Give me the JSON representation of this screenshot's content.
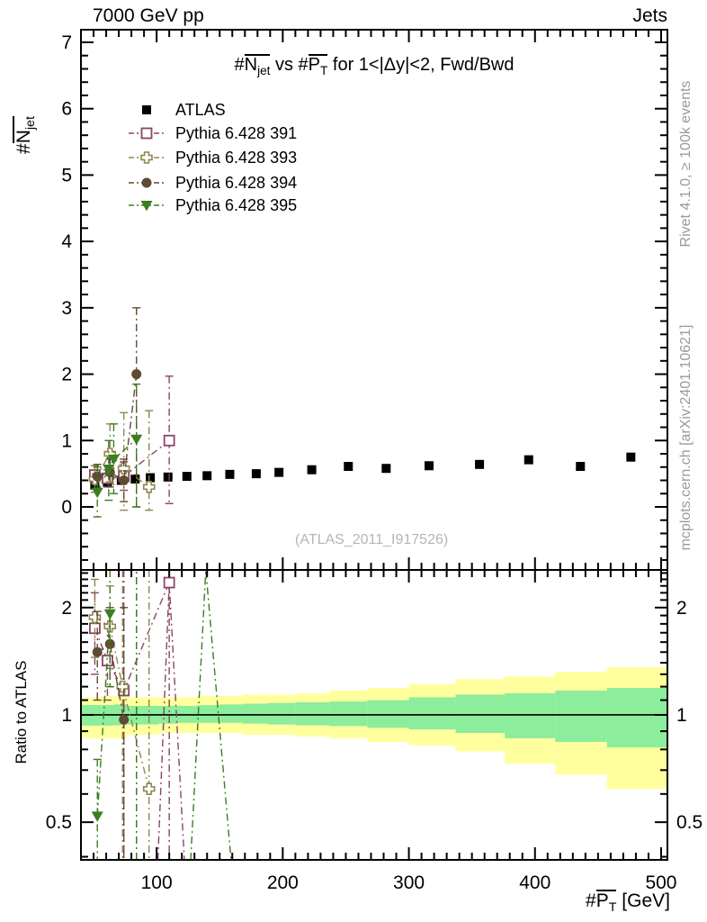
{
  "header": {
    "left_label": "7000 GeV pp",
    "right_label": "Jets"
  },
  "plot": {
    "title": {
      "hash1": "#",
      "sym1": "N",
      "sub1": "jet",
      "mid": " vs ",
      "hash2": "#",
      "sym2": "P",
      "sub2": "T",
      "tail": " for 1<|Δy|<2, Fwd/Bwd"
    },
    "y_axis_label": {
      "hash": "#",
      "sym": "N",
      "sub": "jet"
    },
    "x_axis_label": {
      "hash": "#",
      "sym": "P",
      "sub": "T",
      "units": " [GeV]"
    },
    "ratio_axis_label": "Ratio to ATLAS",
    "side_text_top": "Rivet 4.1.0, ≥ 100k events",
    "side_text_bottom": "mcplots.cern.ch [arXiv:2401.10621]",
    "watermark": "(ATLAS_2011_I917526)"
  },
  "legend": {
    "items": [
      {
        "label": "ATLAS",
        "series": "atlas"
      },
      {
        "label": "Pythia 6.428 391",
        "series": "p391"
      },
      {
        "label": "Pythia 6.428 393",
        "series": "p393"
      },
      {
        "label": "Pythia 6.428 394",
        "series": "p394"
      },
      {
        "label": "Pythia 6.428 395",
        "series": "p395"
      }
    ]
  },
  "colors": {
    "atlas": "#000000",
    "p391": "#8a4566",
    "p393": "#8f874f",
    "p394": "#5f4a33",
    "p395": "#3c7d20",
    "band_yellow": "#ffff9e",
    "band_green": "#8ced9c",
    "frame": "#000000",
    "gray_text": "#9a9a9a",
    "watermark": "#b5b5b5"
  },
  "chart_data": [
    {
      "id": "main",
      "type": "scatter",
      "title": "#Njet vs #PT for 1<|Δy|<2, Fwd/Bwd",
      "xlabel": "#PT [GeV]",
      "ylabel": "#Njet",
      "xlim": [
        40,
        505
      ],
      "ylim": [
        -0.95,
        7.19
      ],
      "xticks": [
        100,
        200,
        300,
        400,
        500
      ],
      "yticks": [
        0,
        1,
        2,
        3,
        4,
        5,
        6,
        7
      ],
      "x_minor_step": 10,
      "y_minor_step": 0.2,
      "grid": false,
      "legend_position": "top-left",
      "series": [
        {
          "key": "atlas",
          "name": "ATLAS",
          "marker": "square-filled",
          "color_key": "atlas",
          "connect": false,
          "points": [
            [
              51,
              0.33
            ],
            [
              61,
              0.37
            ],
            [
              72,
              0.4
            ],
            [
              83,
              0.42
            ],
            [
              95,
              0.44
            ],
            [
              109,
              0.45
            ],
            [
              124,
              0.46
            ],
            [
              140,
              0.47
            ],
            [
              158,
              0.49
            ],
            [
              179,
              0.5
            ],
            [
              197,
              0.52
            ],
            [
              223,
              0.56
            ],
            [
              252,
              0.61
            ],
            [
              282,
              0.58
            ],
            [
              316,
              0.62
            ],
            [
              356,
              0.64
            ],
            [
              395,
              0.71
            ],
            [
              436,
              0.61
            ],
            [
              476,
              0.75
            ]
          ]
        },
        {
          "key": "p391",
          "name": "Pythia 6.428 391",
          "marker": "square-open",
          "color_key": "p391",
          "connect": true,
          "points": [
            [
              51,
              0.48,
              0.36,
              0.62
            ],
            [
              61,
              0.43,
              0.3,
              0.56
            ],
            [
              74,
              0.46,
              0.25,
              0.68
            ],
            [
              110,
              1.0,
              0.05,
              1.97
            ]
          ]
        },
        {
          "key": "p393",
          "name": "Pythia 6.428 393",
          "marker": "cross-open",
          "color_key": "p393",
          "connect": true,
          "points": [
            [
              51,
              0.42,
              0.22,
              0.62
            ],
            [
              63,
              0.8,
              0.38,
              1.25
            ],
            [
              74,
              0.58,
              -0.05,
              1.42
            ],
            [
              94,
              0.3,
              -0.05,
              1.45
            ]
          ]
        },
        {
          "key": "p394",
          "name": "Pythia 6.428 394",
          "marker": "circle-filled",
          "color_key": "p394",
          "connect": true,
          "points": [
            [
              53,
              0.46,
              0.28,
              0.64
            ],
            [
              63,
              0.52,
              0.3,
              0.73
            ],
            [
              74,
              0.4,
              0.08,
              0.72
            ],
            [
              84,
              2.0,
              0.0,
              3.0
            ]
          ]
        },
        {
          "key": "p395",
          "name": "Pythia 6.428 395",
          "marker": "triangle-down-filled",
          "color_key": "p395",
          "connect": true,
          "points": [
            [
              53,
              0.22,
              -0.15,
              0.6
            ],
            [
              62,
              0.57,
              0.1,
              1.0
            ],
            [
              66,
              0.72,
              0.2,
              1.25
            ],
            [
              84,
              1.02,
              0.0,
              1.85
            ]
          ]
        }
      ]
    },
    {
      "id": "ratio",
      "type": "ratio-bands-scatter",
      "ylabel": "Ratio to ATLAS",
      "ylog": true,
      "xlim": [
        40,
        505
      ],
      "ylim": [
        0.392,
        2.55
      ],
      "yticks": [
        0.5,
        1,
        2
      ],
      "ytick_labels": [
        "0.5",
        "1",
        "2"
      ],
      "y_minor": {
        "from": 0.4,
        "to": 2.5,
        "step": 0.1
      },
      "xticks": [
        100,
        200,
        300,
        400,
        500
      ],
      "x_minor_step": 10,
      "reference_line": 1,
      "bands": {
        "edges": [
          40,
          56,
          66,
          76,
          88,
          102,
          117,
          132,
          150,
          168,
          188,
          210,
          237,
          267,
          300,
          337,
          376,
          416,
          457,
          505
        ],
        "yellow": [
          [
            0.86,
            1.12
          ],
          [
            0.86,
            1.13
          ],
          [
            0.86,
            1.13
          ],
          [
            0.88,
            1.12
          ],
          [
            0.88,
            1.12
          ],
          [
            0.89,
            1.12
          ],
          [
            0.89,
            1.12
          ],
          [
            0.89,
            1.13
          ],
          [
            0.89,
            1.13
          ],
          [
            0.88,
            1.14
          ],
          [
            0.88,
            1.14
          ],
          [
            0.87,
            1.15
          ],
          [
            0.86,
            1.17
          ],
          [
            0.84,
            1.19
          ],
          [
            0.82,
            1.22
          ],
          [
            0.79,
            1.26
          ],
          [
            0.73,
            1.28
          ],
          [
            0.68,
            1.32
          ],
          [
            0.62,
            1.36
          ]
        ],
        "green": [
          [
            0.933,
            1.066
          ],
          [
            0.933,
            1.066
          ],
          [
            0.935,
            1.07
          ],
          [
            0.94,
            1.06
          ],
          [
            0.94,
            1.06
          ],
          [
            0.945,
            1.06
          ],
          [
            0.95,
            1.06
          ],
          [
            0.95,
            1.065
          ],
          [
            0.95,
            1.07
          ],
          [
            0.945,
            1.075
          ],
          [
            0.94,
            1.08
          ],
          [
            0.935,
            1.085
          ],
          [
            0.93,
            1.09
          ],
          [
            0.92,
            1.1
          ],
          [
            0.91,
            1.12
          ],
          [
            0.89,
            1.14
          ],
          [
            0.86,
            1.15
          ],
          [
            0.84,
            1.17
          ],
          [
            0.81,
            1.19
          ]
        ]
      },
      "series": [
        {
          "key": "p391",
          "marker": "square-open",
          "color_key": "p391",
          "connect": true,
          "points": [
            [
              51,
              1.75,
              1.3,
              2.2
            ],
            [
              61,
              1.42,
              1.1,
              1.8
            ],
            [
              74,
              1.17,
              0.392,
              2.55
            ],
            [
              110,
              2.35,
              0.392,
              2.55
            ]
          ],
          "spikes": [
            [
              [
                101,
                0.392
              ],
              [
                110,
                2.35
              ],
              [
                122,
                0.392
              ]
            ]
          ]
        },
        {
          "key": "p393",
          "marker": "cross-open",
          "color_key": "p393",
          "connect": true,
          "points": [
            [
              51,
              1.88,
              1.45,
              2.4
            ],
            [
              63,
              1.77,
              1.35,
              2.3
            ],
            [
              73,
              1.2,
              0.392,
              2.55
            ],
            [
              94,
              0.62,
              0.392,
              2.55
            ]
          ],
          "spikes": []
        },
        {
          "key": "p394",
          "marker": "circle-filled",
          "color_key": "p394",
          "connect": true,
          "points": [
            [
              53,
              1.5,
              1.1,
              1.95
            ],
            [
              63,
              1.58,
              1.2,
              2.0
            ],
            [
              74,
              0.97,
              0.392,
              2.0
            ]
          ],
          "spikes": [
            [
              [
                84,
                0.392
              ],
              [
                84,
                2.55
              ]
            ]
          ]
        },
        {
          "key": "p395",
          "marker": "triangle-down-filled",
          "color_key": "p395",
          "connect": true,
          "points": [
            [
              53,
              0.52,
              0.392,
              0.75
            ],
            [
              63,
              1.92,
              1.2,
              2.55
            ]
          ],
          "spikes": [
            [
              [
                84,
                0.392
              ],
              [
                84,
                2.55
              ]
            ],
            [
              [
                127,
                0.392
              ],
              [
                139,
                2.55
              ],
              [
                159,
                0.392
              ]
            ]
          ]
        }
      ]
    }
  ]
}
